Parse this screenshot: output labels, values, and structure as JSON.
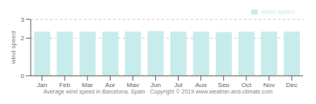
{
  "chart_data": {
    "type": "bar",
    "categories": [
      "Jan",
      "Feb",
      "Mar",
      "Apr",
      "May",
      "Jun",
      "Jul",
      "Aug",
      "Sep",
      "Oct",
      "Nov",
      "Dec"
    ],
    "series": [
      {
        "name": "Wind speed",
        "color": "#c8ecec",
        "values": [
          2.35,
          2.35,
          2.35,
          2.35,
          2.35,
          2.38,
          2.35,
          2.35,
          2.32,
          2.35,
          2.35,
          2.35
        ]
      }
    ],
    "ylabel": "wind speed",
    "xlabel": "Average wind speed in Barcelona, Spain   Copyright © 2019 www.weather-and-climate.com",
    "ylim": [
      0,
      3
    ],
    "yticks": [
      0,
      2,
      3
    ],
    "grid": true,
    "legend": "upper right"
  }
}
